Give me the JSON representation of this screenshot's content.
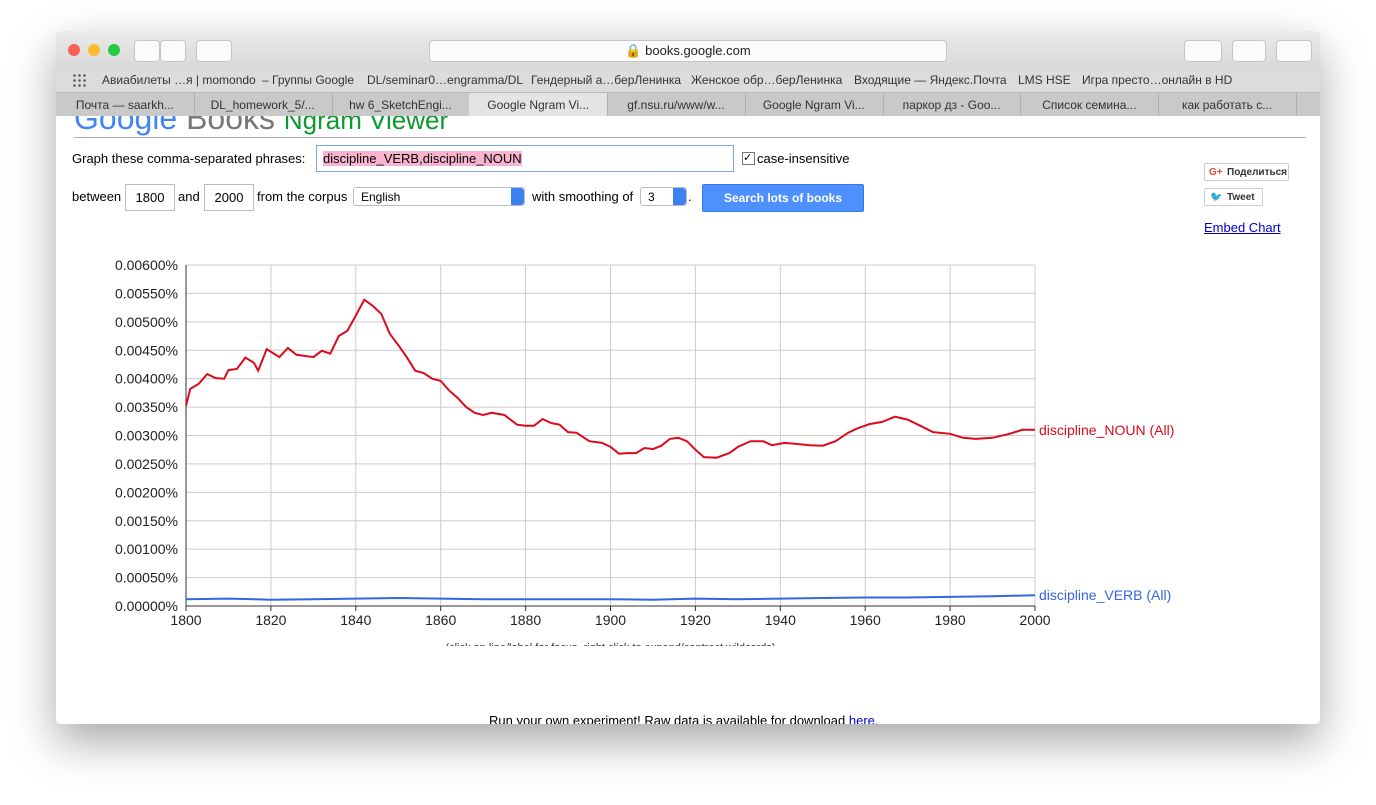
{
  "browser": {
    "url": "books.google.com",
    "bookmarks": [
      "Авиабилеты …я | momondo",
      "– Группы Google",
      "DL/seminar0…engramma/DL",
      "Гендерный а…берЛенинка",
      "Женское обр…берЛенинка",
      "Входящие — Яндекс.Почта",
      "LMS HSE",
      "Игра престо…онлайн в HD"
    ],
    "tabs": [
      "Почта — saarkh...",
      "DL_homework_5/...",
      "hw 6_SketchEngi...",
      "Google Ngram Vi...",
      "gf.nsu.ru/www/w...",
      "Google Ngram Vi...",
      "паркор дз - Goo...",
      "Список семина...",
      "как работать с..."
    ]
  },
  "header": {
    "logo": "Google",
    "product": "Books",
    "subtitle": "Ngram Viewer"
  },
  "form": {
    "phrases_label": "Graph these comma-separated phrases:",
    "phrases": "discipline_VERB,discipline_NOUN",
    "case_insensitive": "case-insensitive",
    "between": "between",
    "start_year": "1800",
    "and": "and",
    "end_year": "2000",
    "corpus_label": "from the corpus",
    "corpus": "English",
    "smoothing_label": "with smoothing of",
    "smoothing": "3",
    "period": ".",
    "search_button": "Search lots of books"
  },
  "share": {
    "share": "Поделиться",
    "tweet": "Tweet",
    "embed": "Embed Chart"
  },
  "chart_data": {
    "type": "line",
    "grid": true,
    "xlim": [
      1800,
      2000
    ],
    "xticks": [
      1800,
      1820,
      1840,
      1860,
      1880,
      1900,
      1920,
      1940,
      1960,
      1980,
      2000
    ],
    "ylim": [
      0,
      0.006
    ],
    "yticks": [
      {
        "value": 0,
        "label": "0.00000%"
      },
      {
        "value": 0.0005,
        "label": "0.00050%"
      },
      {
        "value": 0.001,
        "label": "0.00100%"
      },
      {
        "value": 0.0015,
        "label": "0.00150%"
      },
      {
        "value": 0.002,
        "label": "0.00200%"
      },
      {
        "value": 0.0025,
        "label": "0.00250%"
      },
      {
        "value": 0.003,
        "label": "0.00300%"
      },
      {
        "value": 0.0035,
        "label": "0.00350%"
      },
      {
        "value": 0.004,
        "label": "0.00400%"
      },
      {
        "value": 0.0045,
        "label": "0.00450%"
      },
      {
        "value": 0.005,
        "label": "0.00500%"
      },
      {
        "value": 0.0055,
        "label": "0.00550%"
      },
      {
        "value": 0.006,
        "label": "0.00600%"
      }
    ],
    "series": [
      {
        "name": "discipline_NOUN (All)",
        "color": "#dc0a1e",
        "x": [
          1800,
          1801,
          1803,
          1805,
          1807,
          1809,
          1810,
          1812,
          1814,
          1816,
          1817,
          1819,
          1822,
          1824,
          1826,
          1830,
          1832,
          1834,
          1836,
          1838,
          1840,
          1842,
          1844,
          1846,
          1848,
          1850,
          1852,
          1854,
          1856,
          1858,
          1860,
          1862,
          1864,
          1866,
          1868,
          1870,
          1872,
          1875,
          1878,
          1880,
          1882,
          1884,
          1886,
          1888,
          1890,
          1892,
          1895,
          1898,
          1900,
          1902,
          1904,
          1906,
          1908,
          1910,
          1912,
          1914,
          1916,
          1918,
          1920,
          1922,
          1925,
          1928,
          1930,
          1933,
          1936,
          1938,
          1941,
          1944,
          1947,
          1950,
          1953,
          1956,
          1958,
          1961,
          1964,
          1967,
          1970,
          1973,
          1976,
          1980,
          1983,
          1986,
          1990,
          1994,
          1997,
          2000
        ],
        "values": [
          0.00352,
          0.00382,
          0.00391,
          0.00408,
          0.00401,
          0.004,
          0.00415,
          0.00417,
          0.00437,
          0.00428,
          0.00414,
          0.00452,
          0.00438,
          0.00454,
          0.00442,
          0.00438,
          0.00449,
          0.00444,
          0.00475,
          0.00484,
          0.00511,
          0.00539,
          0.00528,
          0.00514,
          0.00479,
          0.00459,
          0.00438,
          0.00414,
          0.0041,
          0.004,
          0.00396,
          0.00379,
          0.00366,
          0.0035,
          0.0034,
          0.00336,
          0.0034,
          0.00336,
          0.00319,
          0.00317,
          0.00317,
          0.00329,
          0.00322,
          0.00319,
          0.00306,
          0.00305,
          0.0029,
          0.00287,
          0.0028,
          0.00268,
          0.00269,
          0.00269,
          0.00278,
          0.00276,
          0.00282,
          0.00294,
          0.00296,
          0.0029,
          0.00275,
          0.00262,
          0.00261,
          0.00269,
          0.0028,
          0.0029,
          0.0029,
          0.00283,
          0.00287,
          0.00285,
          0.00283,
          0.00282,
          0.0029,
          0.00305,
          0.00312,
          0.0032,
          0.00324,
          0.00333,
          0.00328,
          0.00317,
          0.00306,
          0.00303,
          0.00296,
          0.00294,
          0.00296,
          0.00303,
          0.0031,
          0.0031
        ]
      },
      {
        "name": "discipline_VERB (All)",
        "color": "#3366e0",
        "x": [
          1800,
          1810,
          1820,
          1830,
          1840,
          1850,
          1860,
          1870,
          1880,
          1890,
          1900,
          1910,
          1920,
          1930,
          1940,
          1950,
          1960,
          1970,
          1980,
          1990,
          2000
        ],
        "values": [
          0.00012,
          0.00013,
          0.00011,
          0.00012,
          0.00013,
          0.00014,
          0.00013,
          0.00012,
          0.00012,
          0.00012,
          0.00012,
          0.00011,
          0.00013,
          0.00012,
          0.00013,
          0.00014,
          0.00015,
          0.00015,
          0.00016,
          0.00017,
          0.00019
        ]
      }
    ],
    "note": "(click on line/label for focus, right click to expand/contract wildcards)"
  },
  "footer": {
    "text": "Run your own experiment! Raw data is available for download",
    "link": "here",
    "period": "."
  }
}
